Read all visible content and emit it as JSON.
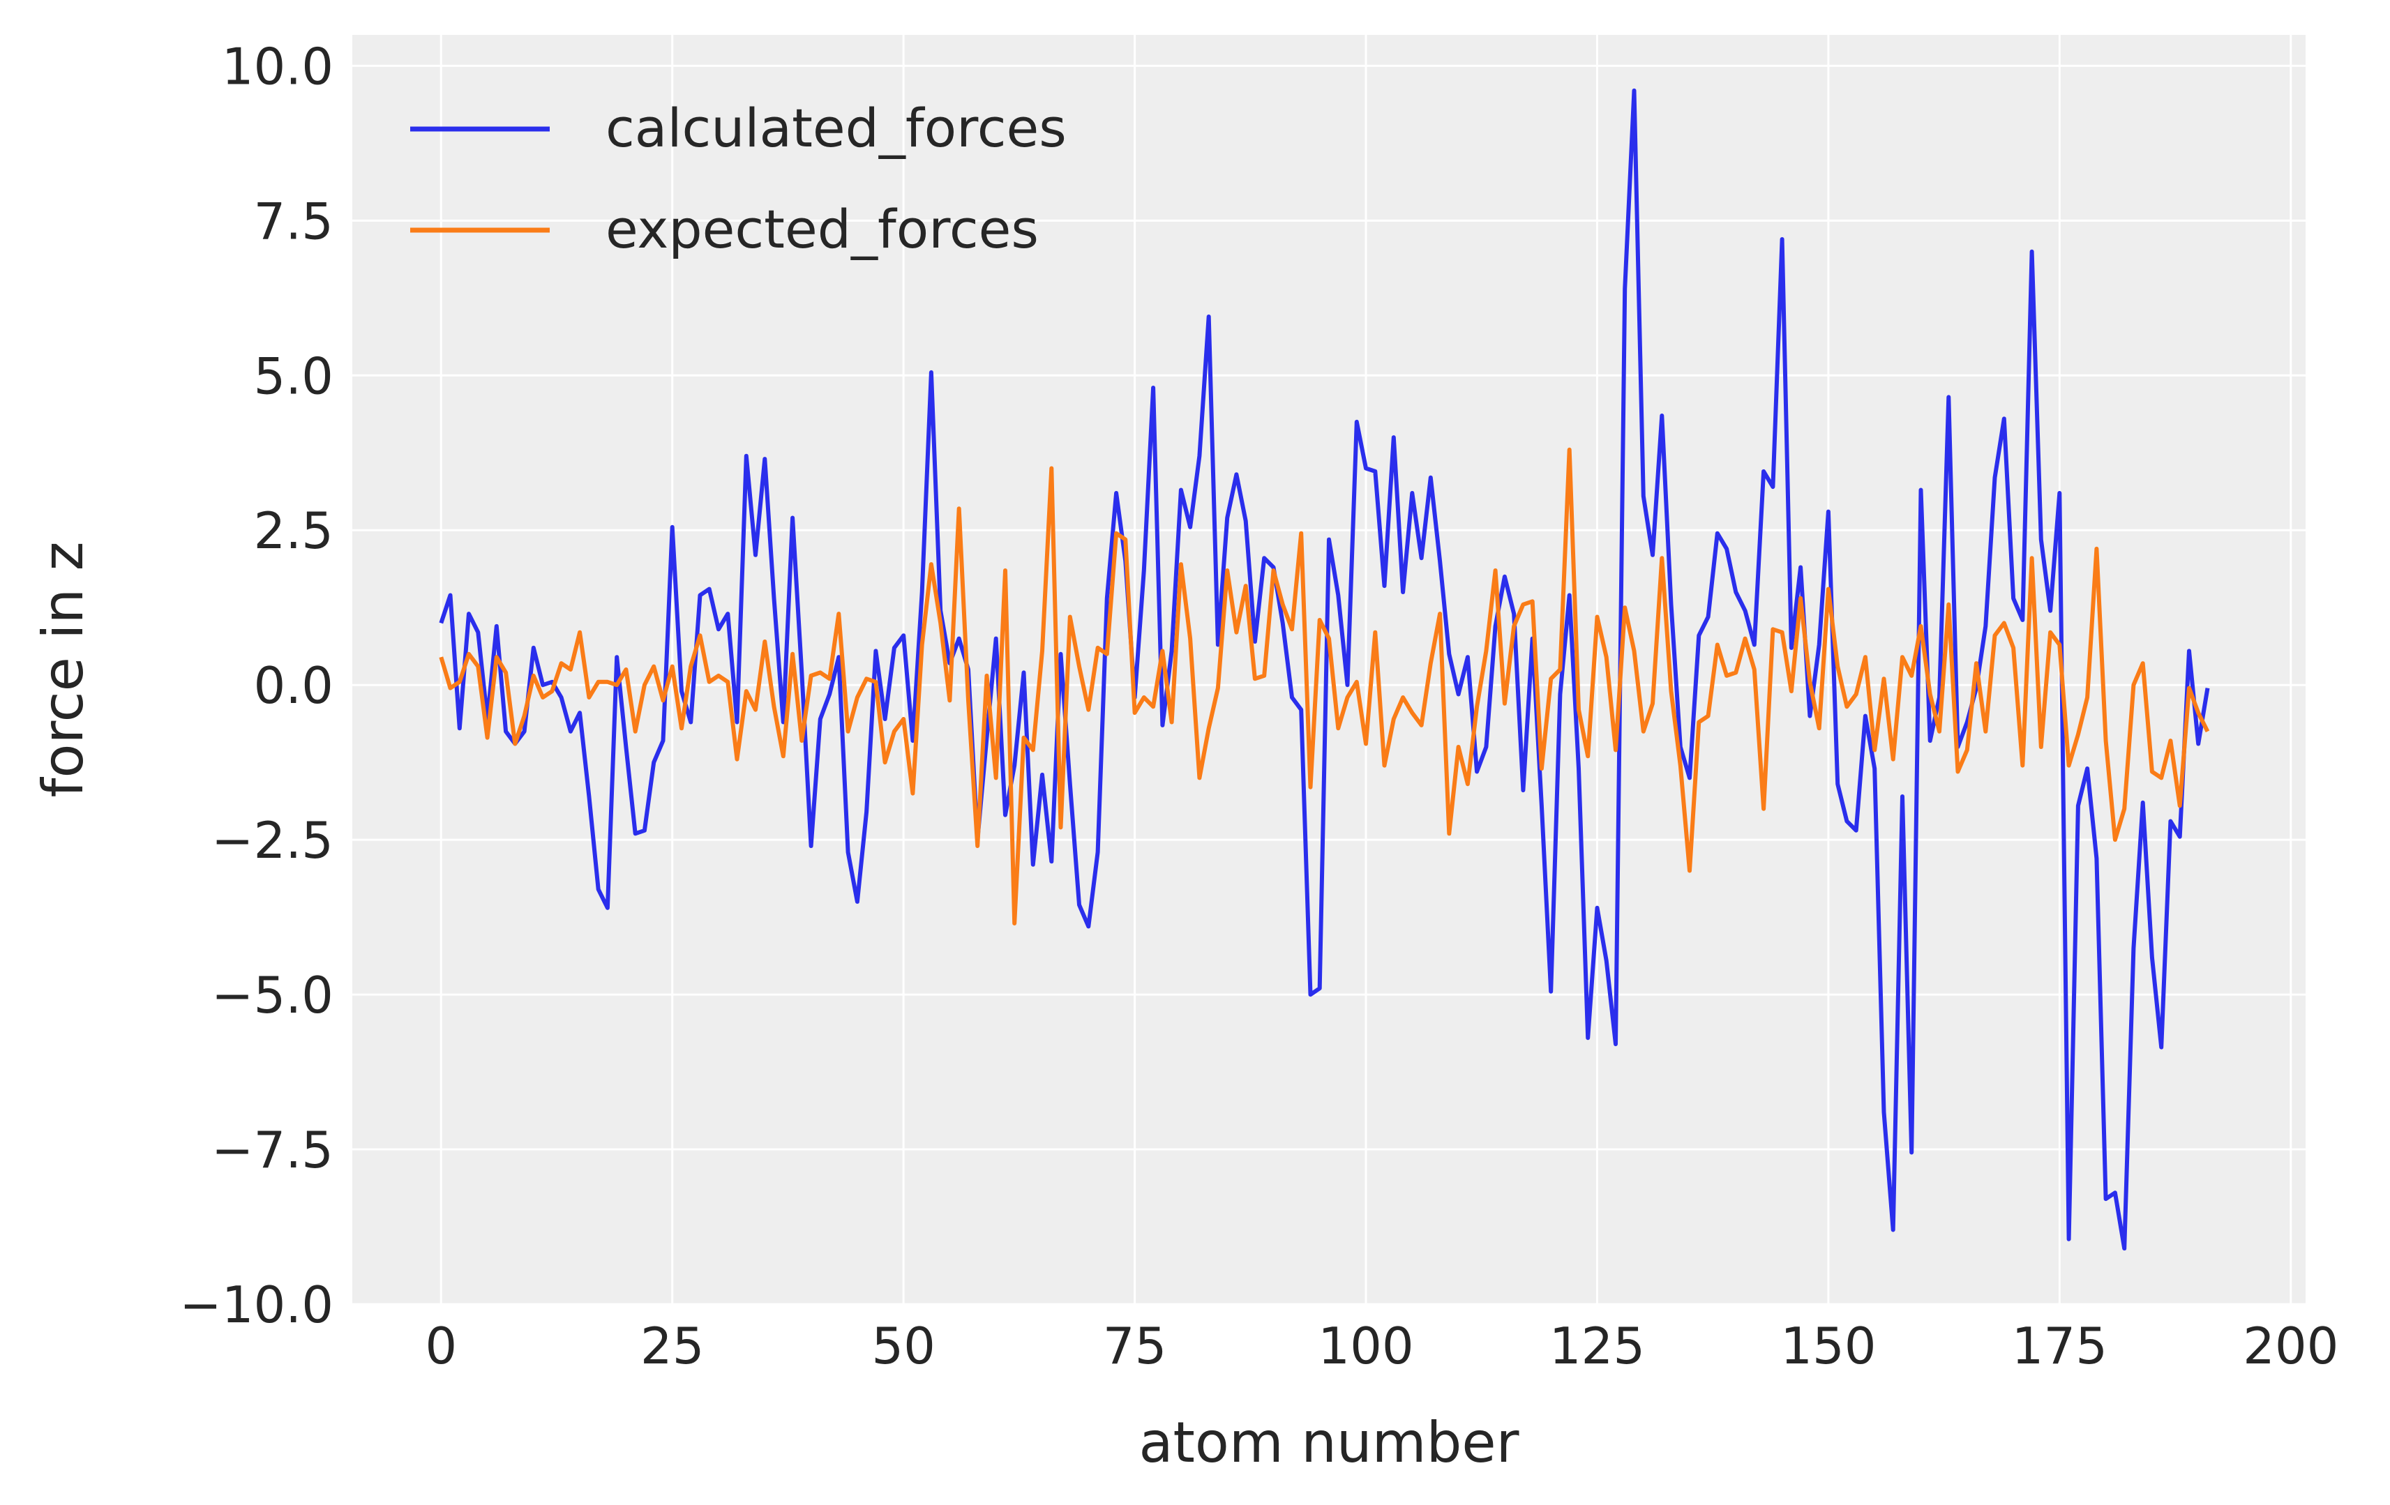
{
  "chart_data": {
    "type": "line",
    "title": "",
    "xlabel": "atom number",
    "ylabel": "force in z",
    "xlim": [
      -9.6,
      201.6
    ],
    "ylim": [
      -10.0,
      10.5
    ],
    "x_ticks": [
      0,
      25,
      50,
      75,
      100,
      125,
      150,
      175,
      200
    ],
    "x_tick_labels": [
      "0",
      "25",
      "50",
      "75",
      "100",
      "125",
      "150",
      "175",
      "200"
    ],
    "y_ticks": [
      10.0,
      7.5,
      5.0,
      2.5,
      0.0,
      -2.5,
      -5.0,
      -7.5,
      -10.0
    ],
    "y_tick_labels": [
      "10.0",
      "7.5",
      "5.0",
      "2.5",
      "0.0",
      "−2.5",
      "−5.0",
      "−7.5",
      "−10.0"
    ],
    "grid": true,
    "legend": "top-left",
    "x_start": 0,
    "x_step": 1,
    "series": [
      {
        "name": "calculated_forces",
        "color": "#2a2eec",
        "values": [
          1.0,
          1.45,
          -0.7,
          1.15,
          0.85,
          -0.55,
          0.95,
          -0.75,
          -0.95,
          -0.75,
          0.6,
          0.0,
          0.05,
          -0.2,
          -0.75,
          -0.45,
          -1.8,
          -3.3,
          -3.6,
          0.45,
          -1.0,
          -2.4,
          -2.35,
          -1.25,
          -0.9,
          2.55,
          -0.1,
          -0.6,
          1.45,
          1.55,
          0.9,
          1.15,
          -0.6,
          3.7,
          2.1,
          3.65,
          1.4,
          -0.6,
          2.7,
          0.2,
          -2.6,
          -0.55,
          -0.15,
          0.45,
          -2.7,
          -3.5,
          -2.05,
          0.55,
          -0.55,
          0.6,
          0.8,
          -0.9,
          1.5,
          5.05,
          1.2,
          0.35,
          0.75,
          0.25,
          -2.5,
          -0.85,
          0.75,
          -2.1,
          -1.3,
          0.2,
          -2.9,
          -1.45,
          -2.85,
          0.5,
          -1.6,
          -3.55,
          -3.9,
          -2.7,
          1.4,
          3.1,
          2.0,
          -0.2,
          1.85,
          4.8,
          -0.65,
          0.55,
          3.15,
          2.55,
          3.7,
          5.95,
          0.65,
          2.7,
          3.4,
          2.65,
          0.7,
          2.05,
          1.9,
          1.0,
          -0.2,
          -0.4,
          -5.0,
          -4.9,
          2.35,
          1.45,
          0.0,
          4.25,
          3.5,
          3.45,
          1.6,
          4.0,
          1.5,
          3.1,
          2.05,
          3.35,
          2.0,
          0.5,
          -0.15,
          0.45,
          -1.4,
          -1.0,
          0.95,
          1.75,
          1.15,
          -1.7,
          0.75,
          -1.95,
          -4.95,
          -0.15,
          1.45,
          -1.35,
          -5.7,
          -3.6,
          -4.45,
          -5.8,
          6.4,
          9.6,
          3.05,
          2.1,
          4.35,
          1.3,
          -1.0,
          -1.5,
          0.8,
          1.1,
          2.45,
          2.2,
          1.5,
          1.2,
          0.65,
          3.45,
          3.2,
          7.2,
          0.6,
          1.9,
          -0.5,
          0.65,
          2.8,
          -1.6,
          -2.2,
          -2.35,
          -0.5,
          -1.35,
          -6.9,
          -8.8,
          -1.8,
          -7.55,
          3.15,
          -0.9,
          -0.2,
          4.65,
          -1.0,
          -0.6,
          -0.05,
          0.95,
          3.35,
          4.3,
          1.4,
          1.05,
          7.0,
          2.35,
          1.2,
          3.1,
          -8.95,
          -1.95,
          -1.35,
          -2.8,
          -8.3,
          -8.2,
          -9.1,
          -4.25,
          -1.9,
          -4.4,
          -5.85,
          -2.2,
          -2.45,
          0.55,
          -0.95,
          -0.05
        ]
      },
      {
        "name": "expected_forces",
        "color": "#fa7c17",
        "values": [
          0.45,
          -0.05,
          0.05,
          0.5,
          0.3,
          -0.85,
          0.45,
          0.2,
          -0.95,
          -0.5,
          0.15,
          -0.2,
          -0.1,
          0.35,
          0.25,
          0.85,
          -0.2,
          0.05,
          0.05,
          0.0,
          0.25,
          -0.75,
          0.0,
          0.3,
          -0.25,
          0.3,
          -0.7,
          0.3,
          0.8,
          0.05,
          0.15,
          0.05,
          -1.2,
          -0.1,
          -0.4,
          0.7,
          -0.35,
          -1.15,
          0.5,
          -0.9,
          0.15,
          0.2,
          0.1,
          1.15,
          -0.75,
          -0.2,
          0.1,
          0.05,
          -1.25,
          -0.75,
          -0.55,
          -1.75,
          0.65,
          1.95,
          1.0,
          -0.25,
          2.85,
          -0.25,
          -2.6,
          0.15,
          -1.5,
          1.85,
          -3.85,
          -0.85,
          -1.05,
          0.55,
          3.5,
          -2.3,
          1.1,
          0.3,
          -0.4,
          0.6,
          0.5,
          2.45,
          2.35,
          -0.45,
          -0.2,
          -0.35,
          0.55,
          -0.6,
          1.95,
          0.75,
          -1.5,
          -0.7,
          -0.05,
          1.85,
          0.85,
          1.6,
          0.1,
          0.15,
          1.85,
          1.3,
          0.9,
          2.45,
          -1.65,
          1.05,
          0.75,
          -0.7,
          -0.2,
          0.05,
          -0.95,
          0.85,
          -1.3,
          -0.55,
          -0.2,
          -0.45,
          -0.65,
          0.35,
          1.15,
          -2.4,
          -1.0,
          -1.6,
          -0.35,
          0.55,
          1.85,
          -0.3,
          0.95,
          1.3,
          1.35,
          -1.35,
          0.1,
          0.25,
          3.8,
          -0.4,
          -1.15,
          1.1,
          0.45,
          -1.05,
          1.25,
          0.55,
          -0.75,
          -0.3,
          2.05,
          -0.1,
          -1.3,
          -3.0,
          -0.6,
          -0.5,
          0.65,
          0.15,
          0.2,
          0.75,
          0.25,
          -2.0,
          0.9,
          0.85,
          -0.1,
          1.4,
          0.05,
          -0.7,
          1.55,
          0.3,
          -0.35,
          -0.15,
          0.45,
          -1.05,
          0.1,
          -1.2,
          0.45,
          0.15,
          0.95,
          -0.15,
          -0.75,
          1.3,
          -1.4,
          -1.05,
          0.35,
          -0.75,
          0.8,
          1.0,
          0.6,
          -1.3,
          2.05,
          -1.0,
          0.85,
          0.65,
          -1.3,
          -0.8,
          -0.2,
          2.2,
          -0.9,
          -2.5,
          -2.0,
          0.0,
          0.35,
          -1.4,
          -1.5,
          -0.9,
          -1.95,
          -0.05,
          -0.45,
          -0.75
        ]
      }
    ]
  }
}
